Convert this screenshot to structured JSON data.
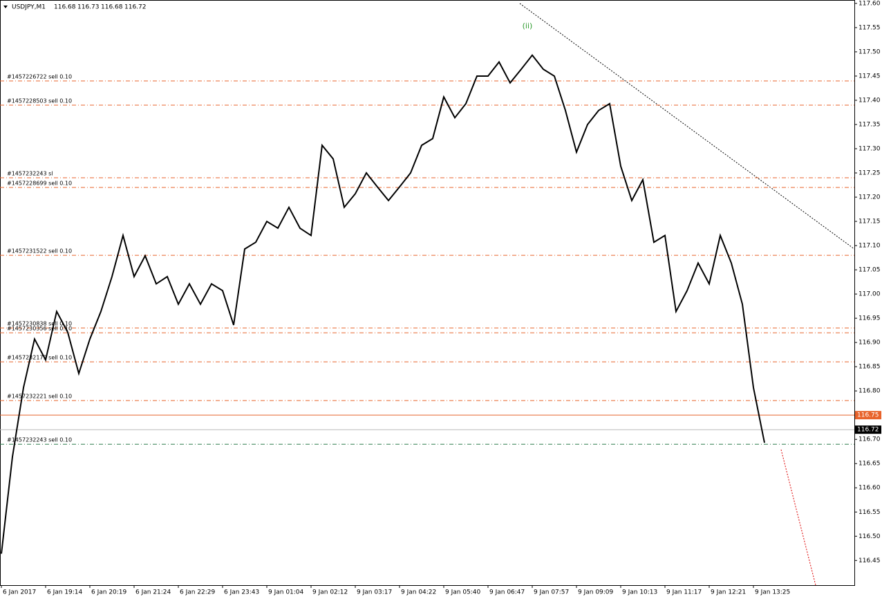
{
  "chart_data": {
    "type": "line",
    "header": {
      "symbol": "USDJPY,M1",
      "ohlc": [
        116.68,
        116.73,
        116.68,
        116.72
      ]
    },
    "annotation": "(ii)",
    "series": [
      {
        "name": "USDJPY",
        "color": "#000000",
        "values": [
          116.464,
          116.664,
          116.807,
          116.907,
          116.864,
          116.964,
          116.921,
          116.836,
          116.907,
          116.964,
          117.036,
          117.121,
          117.036,
          117.079,
          117.021,
          117.036,
          116.979,
          117.021,
          116.979,
          117.021,
          117.007,
          116.936,
          117.093,
          117.107,
          117.15,
          117.136,
          117.179,
          117.136,
          117.121,
          117.307,
          117.279,
          117.179,
          117.207,
          117.25,
          117.221,
          117.193,
          117.221,
          117.25,
          117.307,
          117.321,
          117.407,
          117.364,
          117.393,
          117.45,
          117.45,
          117.479,
          117.436,
          117.464,
          117.493,
          117.464,
          117.45,
          117.379,
          117.293,
          117.35,
          117.379,
          117.393,
          117.264,
          117.193,
          117.236,
          117.107,
          117.121,
          116.964,
          117.007,
          117.064,
          117.021,
          117.121,
          117.064,
          116.979,
          116.807,
          116.693
        ]
      }
    ],
    "xlim": [
      -0.125,
      77.125
    ],
    "xticks": [
      {
        "value": 0,
        "label": "6 Jan 2017"
      },
      {
        "value": 4,
        "label": "6 Jan 19:14"
      },
      {
        "value": 8,
        "label": "6 Jan 20:19"
      },
      {
        "value": 12,
        "label": "6 Jan 21:24"
      },
      {
        "value": 16,
        "label": "6 Jan 22:29"
      },
      {
        "value": 20,
        "label": "6 Jan 23:43"
      },
      {
        "value": 24,
        "label": "9 Jan 01:04"
      },
      {
        "value": 28,
        "label": "9 Jan 02:12"
      },
      {
        "value": 32,
        "label": "9 Jan 03:17"
      },
      {
        "value": 36,
        "label": "9 Jan 04:22"
      },
      {
        "value": 40,
        "label": "9 Jan 05:40"
      },
      {
        "value": 44,
        "label": "9 Jan 06:47"
      },
      {
        "value": 48,
        "label": "9 Jan 07:57"
      },
      {
        "value": 52,
        "label": "9 Jan 09:09"
      },
      {
        "value": 56,
        "label": "9 Jan 10:13"
      },
      {
        "value": 60,
        "label": "9 Jan 11:17"
      },
      {
        "value": 64,
        "label": "9 Jan 12:21"
      },
      {
        "value": 68,
        "label": "9 Jan 13:25"
      }
    ],
    "ylim": [
      116.399,
      117.607
    ],
    "yticks": [
      {
        "value": 117.6,
        "label": "117.60"
      },
      117.55,
      {
        "value": 117.5,
        "label": "117.50"
      },
      117.45,
      {
        "value": 117.4,
        "label": "117.40"
      },
      117.35,
      {
        "value": 117.3,
        "label": "117.30"
      },
      117.25,
      {
        "value": 117.2,
        "label": "117.20"
      },
      117.15,
      {
        "value": 117.1,
        "label": "117.10"
      },
      117.05,
      {
        "value": 117.0,
        "label": "117.00"
      },
      116.95,
      {
        "value": 116.9,
        "label": "116.90"
      },
      116.85,
      {
        "value": 116.8,
        "label": "116.80"
      },
      116.75,
      {
        "value": 116.7,
        "label": "116.70"
      },
      116.65,
      {
        "value": 116.6,
        "label": "116.60"
      },
      116.55,
      {
        "value": 116.5,
        "label": "116.50"
      },
      116.45
    ],
    "orders": [
      {
        "label": "#1457226722 sell 0.10",
        "value": 117.44,
        "color": "#e8632b"
      },
      {
        "label": "#1457228503 sell 0.10",
        "value": 117.39,
        "color": "#e8632b"
      },
      {
        "label": "#1457232243 sl",
        "value": 117.24,
        "color": "#e8632b"
      },
      {
        "label": "#1457228699 sell 0.10",
        "value": 117.22,
        "color": "#e8632b"
      },
      {
        "label": "#1457231522 sell 0.10",
        "value": 117.08,
        "color": "#e8632b"
      },
      {
        "label": "#1457230838 sell 0.10",
        "value": 116.93,
        "color": "#e8632b"
      },
      {
        "label": "#1457230356 sell 0.10",
        "value": 116.92,
        "color": "#e8632b"
      },
      {
        "label": "#1457232179 sell 0.10",
        "value": 116.86,
        "color": "#e8632b"
      },
      {
        "label": "#1457232221 sell 0.10",
        "value": 116.78,
        "color": "#e8632b"
      },
      {
        "label": "#1457232243 sell 0.10",
        "value": 116.69,
        "color": "#2e7d4f"
      }
    ],
    "price_lines": [
      {
        "value": 116.75,
        "color": "#e8632b"
      },
      {
        "value": 116.72,
        "color": "#000000"
      }
    ]
  }
}
